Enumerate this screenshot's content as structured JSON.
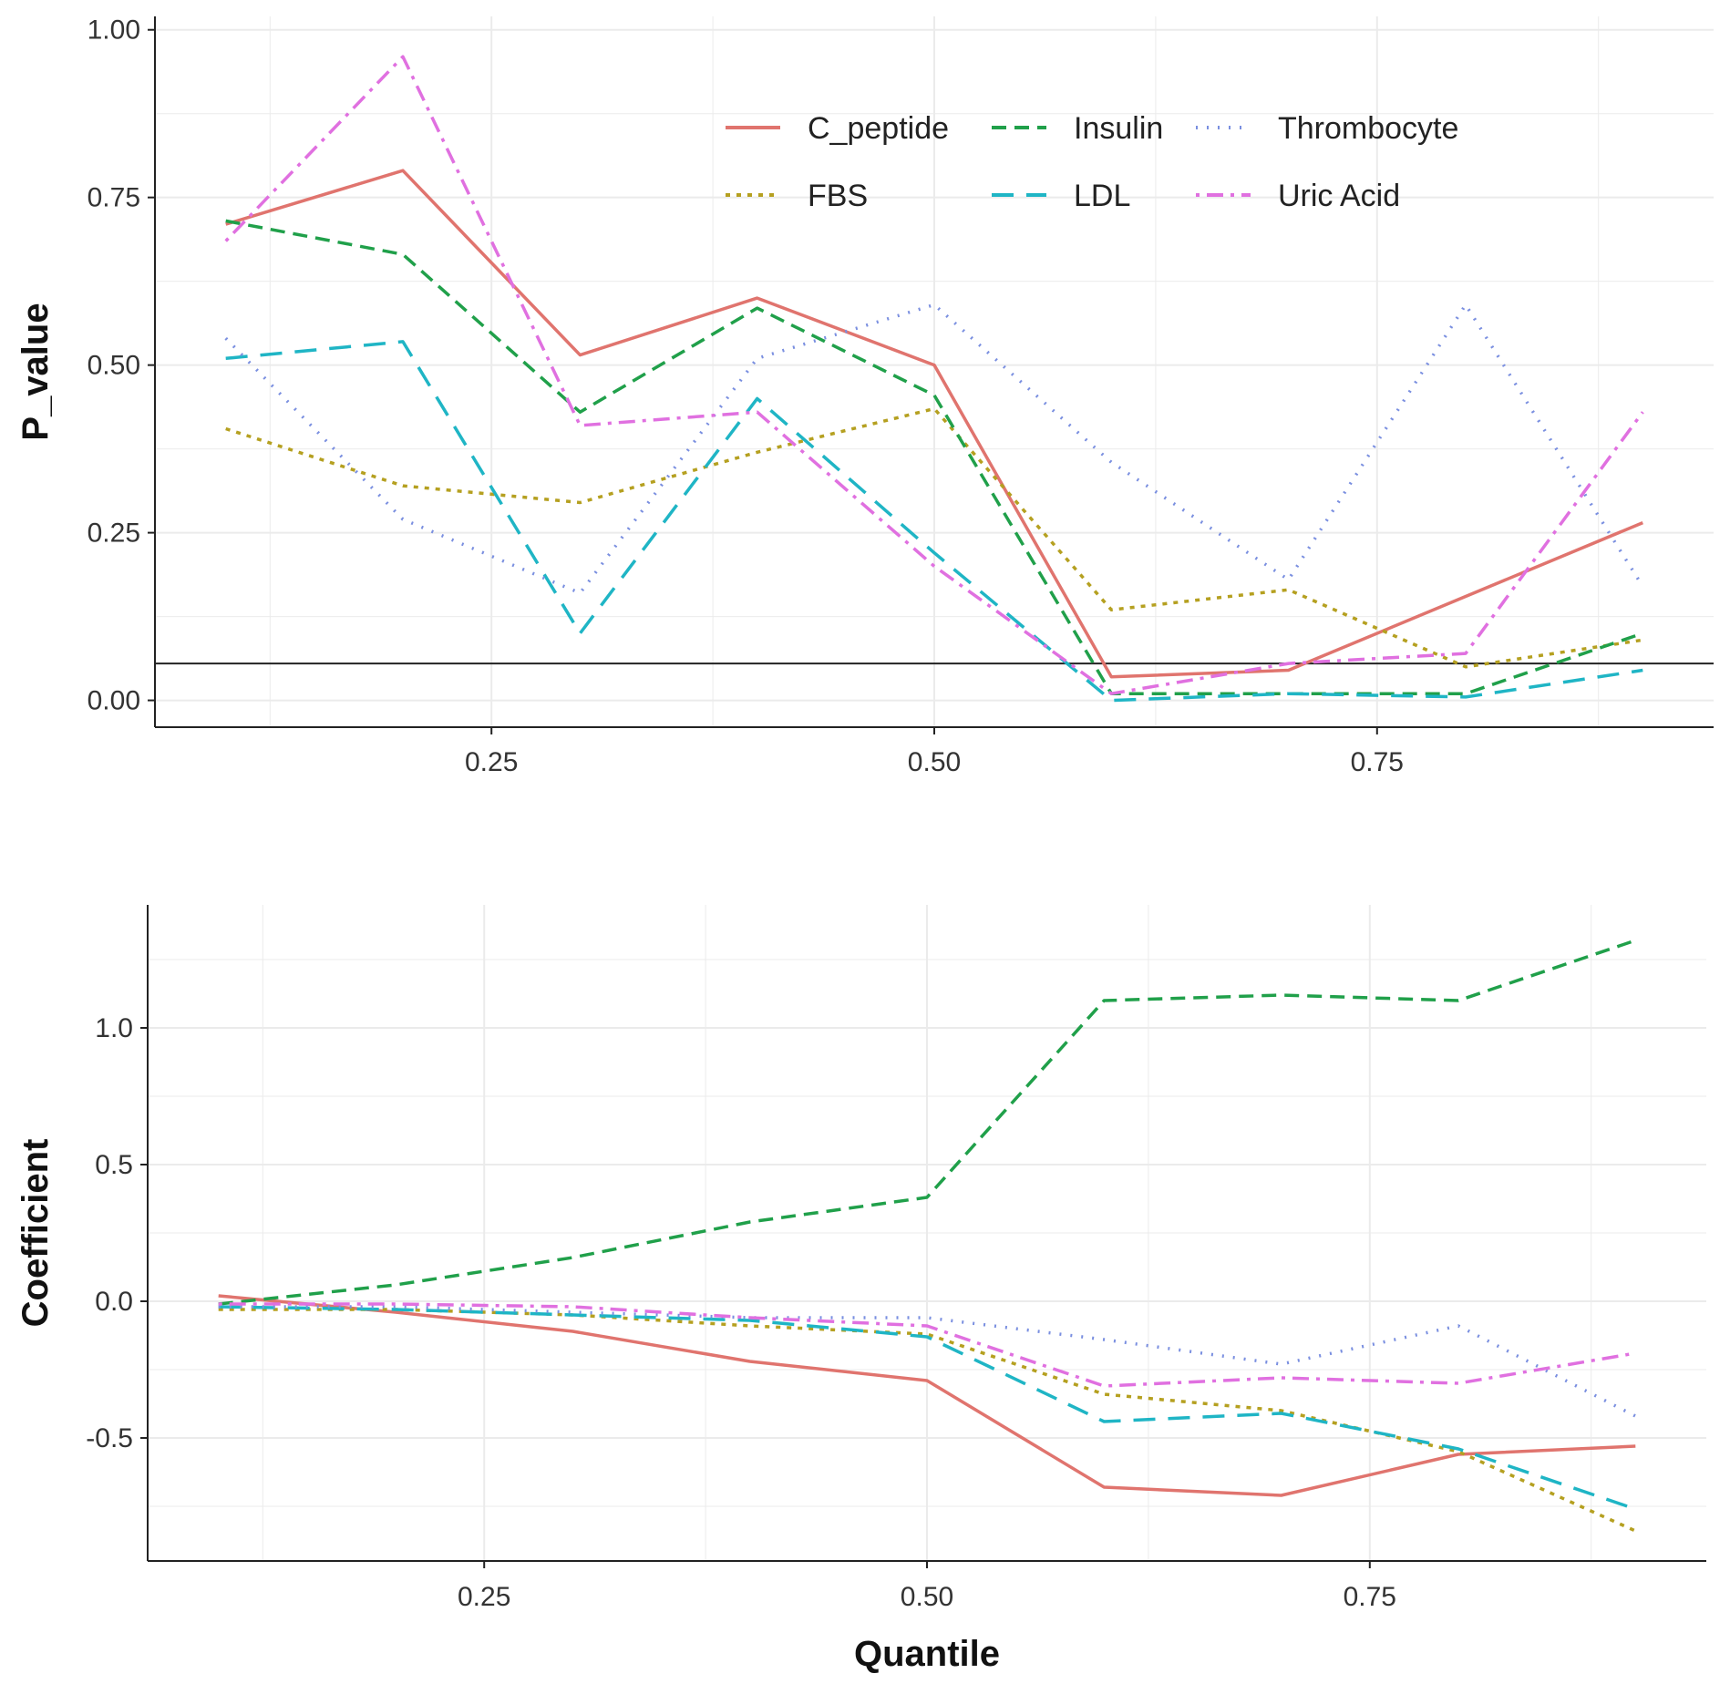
{
  "chart_data": [
    {
      "type": "line",
      "panel": "top",
      "title": "",
      "xlabel": "",
      "ylabel": "P_value",
      "xlim": [
        0.06,
        0.94
      ],
      "ylim": [
        -0.04,
        1.02
      ],
      "xticks": [
        0.25,
        0.5,
        0.75
      ],
      "xtick_labels": [
        "0.25",
        "0.50",
        "0.75"
      ],
      "yticks": [
        0.0,
        0.25,
        0.5,
        0.75,
        1.0
      ],
      "ytick_labels": [
        "0.00",
        "0.25",
        "0.50",
        "0.75",
        "1.00"
      ],
      "grid": true,
      "reference_line": 0.055,
      "legend_position": "top-right",
      "x": [
        0.1,
        0.2,
        0.3,
        0.4,
        0.5,
        0.6,
        0.7,
        0.8,
        0.9
      ],
      "series": [
        {
          "name": "C_peptide",
          "values": [
            0.71,
            0.79,
            0.515,
            0.6,
            0.5,
            0.035,
            0.045,
            0.155,
            0.265
          ]
        },
        {
          "name": "FBS",
          "values": [
            0.405,
            0.32,
            0.295,
            0.37,
            0.435,
            0.135,
            0.165,
            0.05,
            0.09
          ]
        },
        {
          "name": "Insulin",
          "values": [
            0.715,
            0.665,
            0.43,
            0.585,
            0.455,
            0.01,
            0.01,
            0.01,
            0.1
          ]
        },
        {
          "name": "LDL",
          "values": [
            0.51,
            0.535,
            0.1,
            0.45,
            0.22,
            0.0,
            0.01,
            0.005,
            0.045
          ]
        },
        {
          "name": "Thrombocyte",
          "values": [
            0.54,
            0.27,
            0.16,
            0.51,
            0.59,
            0.355,
            0.18,
            0.59,
            0.17
          ]
        },
        {
          "name": "Uric Acid",
          "values": [
            0.685,
            0.96,
            0.41,
            0.43,
            0.2,
            0.01,
            0.055,
            0.07,
            0.43
          ]
        }
      ]
    },
    {
      "type": "line",
      "panel": "bottom",
      "title": "",
      "xlabel": "Quantile",
      "ylabel": "Coefficient",
      "xlim": [
        0.06,
        0.94
      ],
      "ylim": [
        -0.95,
        1.45
      ],
      "xticks": [
        0.25,
        0.5,
        0.75
      ],
      "xtick_labels": [
        "0.25",
        "0.50",
        "0.75"
      ],
      "yticks": [
        -0.5,
        0.0,
        0.5,
        1.0
      ],
      "ytick_labels": [
        "-0.5",
        "0.0",
        "0.5",
        "1.0"
      ],
      "grid": true,
      "x": [
        0.1,
        0.2,
        0.3,
        0.4,
        0.5,
        0.6,
        0.7,
        0.8,
        0.9
      ],
      "series": [
        {
          "name": "C_peptide",
          "values": [
            0.02,
            -0.04,
            -0.11,
            -0.22,
            -0.29,
            -0.68,
            -0.71,
            -0.56,
            -0.53
          ]
        },
        {
          "name": "FBS",
          "values": [
            -0.03,
            -0.03,
            -0.05,
            -0.09,
            -0.12,
            -0.34,
            -0.4,
            -0.55,
            -0.84
          ]
        },
        {
          "name": "Insulin",
          "values": [
            -0.01,
            0.06,
            0.16,
            0.29,
            0.38,
            1.1,
            1.12,
            1.1,
            1.32
          ]
        },
        {
          "name": "LDL",
          "values": [
            -0.02,
            -0.03,
            -0.05,
            -0.07,
            -0.13,
            -0.44,
            -0.41,
            -0.54,
            -0.76
          ]
        },
        {
          "name": "Thrombocyte",
          "values": [
            -0.02,
            -0.02,
            -0.04,
            -0.06,
            -0.06,
            -0.14,
            -0.23,
            -0.09,
            -0.42
          ]
        },
        {
          "name": "Uric Acid",
          "values": [
            -0.01,
            -0.01,
            -0.02,
            -0.06,
            -0.09,
            -0.31,
            -0.28,
            -0.3,
            -0.19
          ]
        }
      ]
    }
  ],
  "legend": {
    "items": [
      {
        "name": "C_peptide",
        "color": "#E0746E",
        "dash": "solid"
      },
      {
        "name": "FBS",
        "color": "#B5A020",
        "dash": "dotted-dense"
      },
      {
        "name": "Insulin",
        "color": "#20A04A",
        "dash": "dashed"
      },
      {
        "name": "LDL",
        "color": "#1FB5C5",
        "dash": "long-dashed"
      },
      {
        "name": "Thrombocyte",
        "color": "#7A8FE0",
        "dash": "dotted"
      },
      {
        "name": "Uric Acid",
        "color": "#E070E0",
        "dash": "dot-dash"
      }
    ]
  },
  "colors": {
    "axis": "#222222",
    "grid": "#EBEBEB",
    "reference_line": "#222222"
  }
}
